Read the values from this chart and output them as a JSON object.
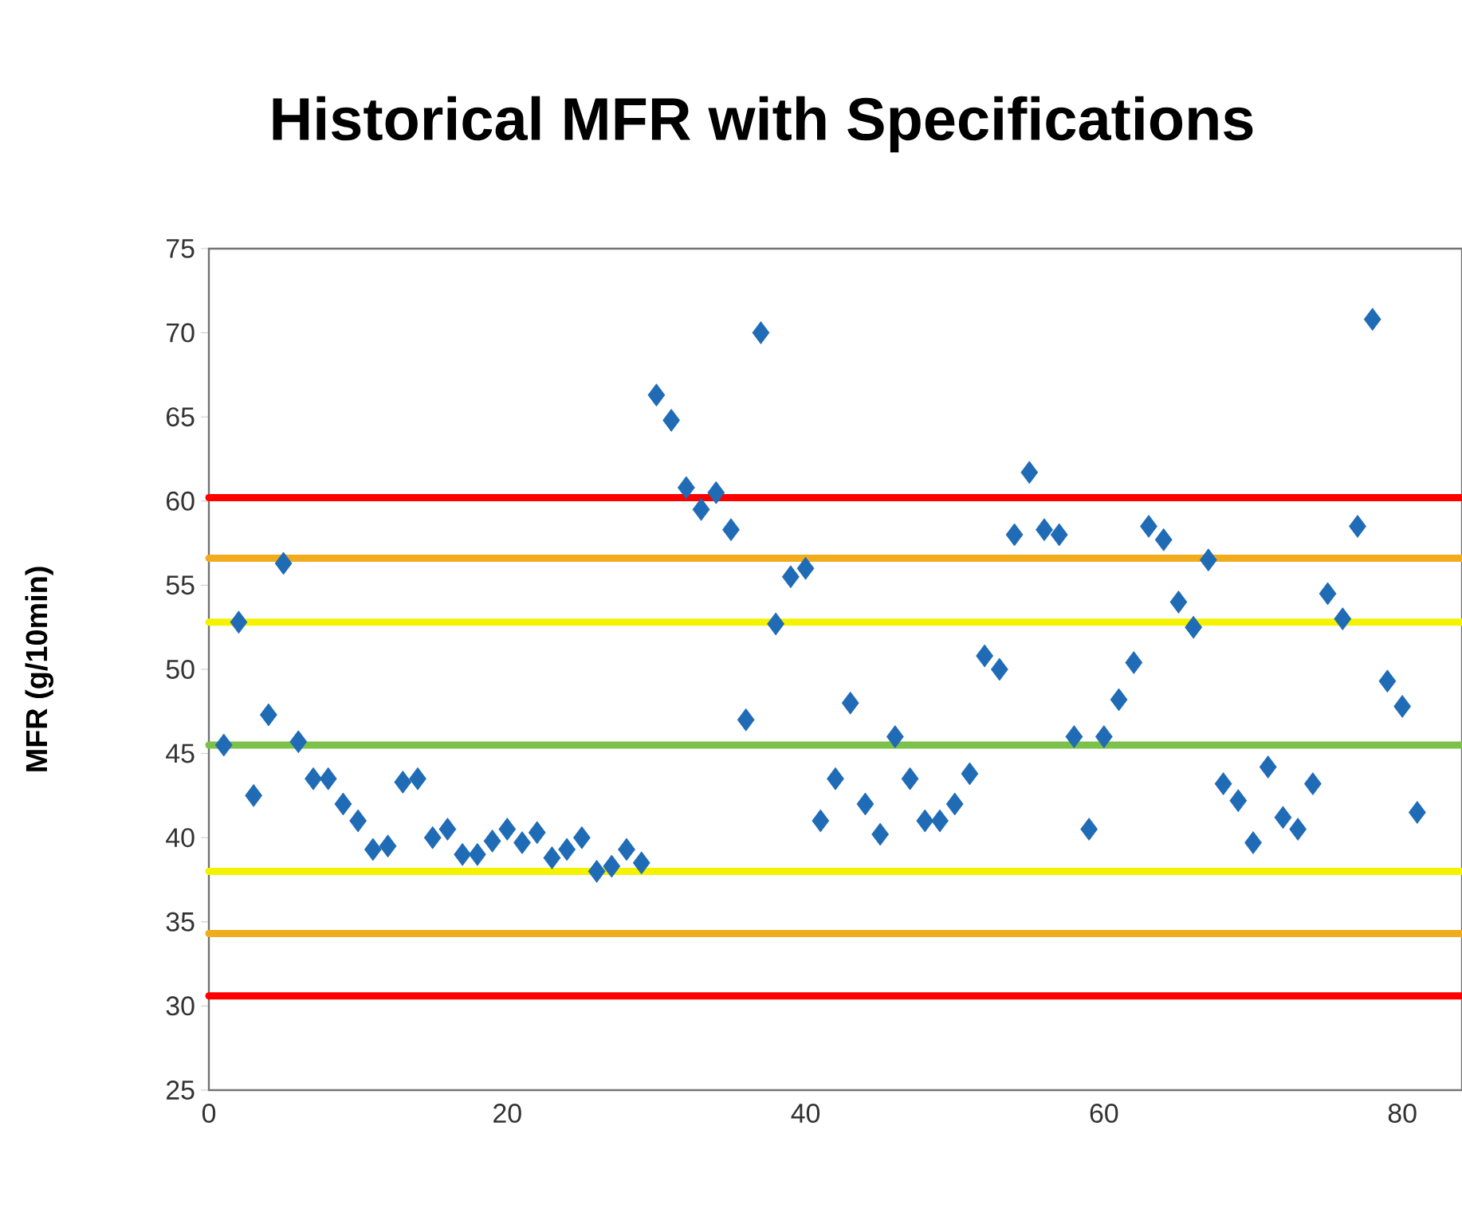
{
  "chart_data": {
    "type": "scatter",
    "title": "Historical MFR with Specifications",
    "ylabel": "MFR (g/10min)",
    "x": [
      1,
      2,
      3,
      4,
      5,
      6,
      7,
      8,
      9,
      10,
      11,
      12,
      13,
      14,
      15,
      16,
      17,
      18,
      19,
      20,
      21,
      22,
      23,
      24,
      25,
      26,
      27,
      28,
      29,
      30,
      31,
      32,
      33,
      34,
      35,
      36,
      37,
      38,
      39,
      40,
      41,
      42,
      43,
      44,
      45,
      46,
      47,
      48,
      49,
      50,
      51,
      52,
      53,
      54,
      55,
      56,
      57,
      58,
      59,
      60,
      61,
      62,
      63,
      64,
      65,
      66,
      67,
      68,
      69,
      70,
      71,
      72,
      73,
      74,
      75,
      76,
      77,
      78,
      79,
      80,
      81
    ],
    "values": [
      45.5,
      52.8,
      42.5,
      47.3,
      56.3,
      45.7,
      43.5,
      43.5,
      42,
      41,
      39.3,
      39.5,
      43.3,
      43.5,
      40,
      40.5,
      39,
      39,
      39.8,
      40.5,
      39.7,
      40.3,
      38.8,
      39.3,
      40,
      38,
      38.3,
      39.3,
      38.5,
      66.3,
      64.8,
      60.8,
      59.5,
      60.5,
      58.3,
      47,
      70,
      52.7,
      55.5,
      56,
      41,
      43.5,
      48,
      42,
      40.2,
      46,
      43.5,
      41,
      41,
      42,
      43.8,
      50.8,
      50,
      58,
      61.7,
      58.3,
      58,
      46,
      40.5,
      46,
      48.2,
      50.4,
      58.5,
      57.7,
      54,
      52.5,
      56.5,
      43.2,
      42.2,
      39.7,
      44.2,
      41.2,
      40.5,
      43.2,
      54.5,
      53,
      58.5,
      70.8,
      49.3,
      47.8,
      41.5
    ],
    "color": "#1f6bb5",
    "marker": "diamond",
    "xlim": [
      0,
      84
    ],
    "xticks": [
      0,
      20,
      40,
      60,
      80
    ],
    "ylim": [
      25,
      75
    ],
    "yticks": [
      25,
      30,
      35,
      40,
      45,
      50,
      55,
      60,
      65,
      70,
      75
    ],
    "grid": false,
    "ref_lines": [
      {
        "axis": "y",
        "value": 60.2,
        "color": "#ff0000"
      },
      {
        "axis": "y",
        "value": 56.6,
        "color": "#f0ac1c"
      },
      {
        "axis": "y",
        "value": 52.8,
        "color": "#f5f200"
      },
      {
        "axis": "y",
        "value": 45.5,
        "color": "#7cc24a"
      },
      {
        "axis": "y",
        "value": 38,
        "color": "#f5f200"
      },
      {
        "axis": "y",
        "value": 34.3,
        "color": "#f0ac1c"
      },
      {
        "axis": "y",
        "value": 30.6,
        "color": "#ff0000"
      }
    ]
  }
}
